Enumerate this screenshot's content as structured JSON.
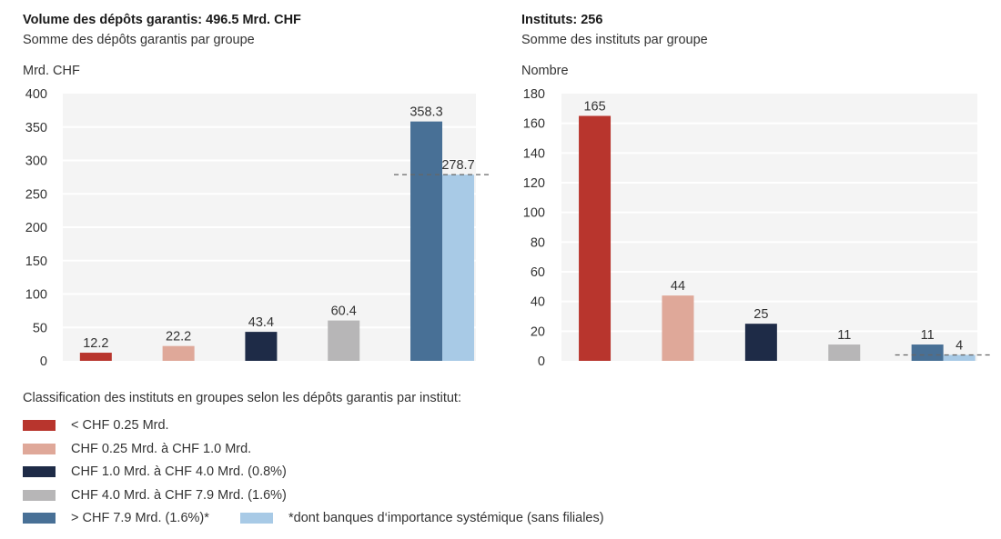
{
  "chart_data": [
    {
      "type": "bar",
      "title": "Volume des dépôts garantis: 496.5 Mrd. CHF",
      "subtitle": "Somme des dépôts garantis par groupe",
      "xlabel": "",
      "ylabel": "Mrd. CHF",
      "ylim": [
        0,
        400
      ],
      "yticks": [
        0,
        50,
        100,
        150,
        200,
        250,
        300,
        350,
        400
      ],
      "grid": true,
      "categories": [
        "< CHF 0.25 Mrd.",
        "CHF 0.25 Mrd. à CHF 1.0 Mrd.",
        "CHF 1.0 Mrd. à CHF 4.0 Mrd. (0.8%)",
        "CHF 4.0 Mrd. à CHF 7.9 Mrd. (1.6%)",
        "> CHF 7.9 Mrd. (1.6%)*"
      ],
      "values": [
        12.2,
        22.2,
        43.4,
        60.4,
        358.3
      ],
      "value_labels": [
        "12.2",
        "22.2",
        "43.4",
        "60.4",
        "358.3"
      ],
      "sub_bar": {
        "category_index": 4,
        "name": "*dont banques d'importance systémique (sans filiales)",
        "value": 278.7,
        "label": "278.7",
        "dashed_reference_line": true
      }
    },
    {
      "type": "bar",
      "title": "Instituts: 256",
      "subtitle": "Somme des instituts par groupe",
      "xlabel": "",
      "ylabel": "Nombre",
      "ylim": [
        0,
        180
      ],
      "yticks": [
        0,
        20,
        40,
        60,
        80,
        100,
        120,
        140,
        160,
        180
      ],
      "grid": true,
      "categories": [
        "< CHF 0.25 Mrd.",
        "CHF 0.25 Mrd. à CHF 1.0 Mrd.",
        "CHF 1.0 Mrd. à CHF 4.0 Mrd. (0.8%)",
        "CHF 4.0 Mrd. à CHF 7.9 Mrd. (1.6%)",
        "> CHF 7.9 Mrd. (1.6%)*"
      ],
      "values": [
        165,
        44,
        25,
        11,
        11
      ],
      "value_labels": [
        "165",
        "44",
        "25",
        "11",
        "11"
      ],
      "sub_bar": {
        "category_index": 4,
        "name": "*dont banques d'importance systémique (sans filiales)",
        "value": 4,
        "label": "4",
        "dashed_reference_line": true
      }
    }
  ],
  "colors": {
    "group1": "#b8352d",
    "group2": "#dfa899",
    "group3": "#1e2b47",
    "group4": "#b7b6b7",
    "group5": "#487096",
    "systemic": "#a8cae6",
    "plot_bg": "#f4f4f4",
    "grid": "#ffffff",
    "dash": "#666666"
  },
  "legend": {
    "title": "Classification des instituts en groupes selon les dépôts garantis par institut:",
    "items": [
      {
        "label": "< CHF 0.25 Mrd.",
        "color": "#b8352d"
      },
      {
        "label": "CHF 0.25 Mrd. à CHF 1.0 Mrd.",
        "color": "#dfa899"
      },
      {
        "label": "CHF 1.0 Mrd. à CHF 4.0 Mrd. (0.8%)",
        "color": "#1e2b47"
      },
      {
        "label": "CHF 4.0 Mrd. à CHF 7.9 Mrd. (1.6%)",
        "color": "#b7b6b7"
      },
      {
        "label": "> CHF 7.9 Mrd. (1.6%)*",
        "color": "#487096"
      },
      {
        "label": "*dont banques d‘importance systémique (sans filiales)",
        "color": "#a8cae6"
      }
    ]
  }
}
